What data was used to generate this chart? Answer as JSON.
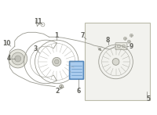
{
  "bg_color": "#ffffff",
  "line_color": "#999990",
  "dark_line": "#888888",
  "text_color": "#666660",
  "highlight_edge": "#5588bb",
  "highlight_fill": "#aaccee",
  "part_fill": "#e8e8e0",
  "part_fill2": "#d8d8d0",
  "box_fill": "#f2f2ee",
  "figsize": [
    2.0,
    1.47
  ],
  "dpi": 100
}
